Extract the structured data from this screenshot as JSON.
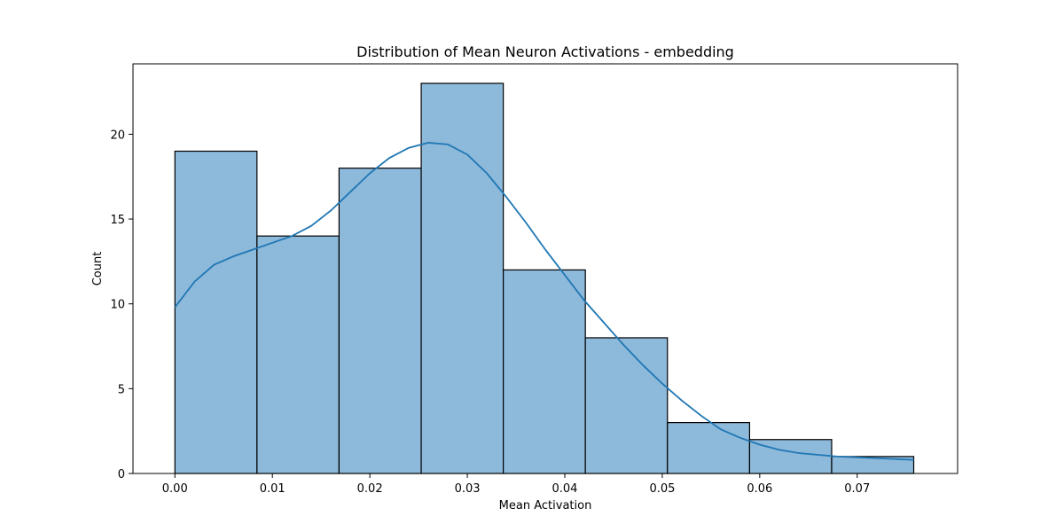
{
  "chart_data": {
    "type": "bar",
    "subtype": "histogram-with-kde",
    "title": "Distribution of Mean Neuron Activations - embedding",
    "xlabel": "Mean Activation",
    "ylabel": "Count",
    "xlim": [
      -0.0043,
      0.0803
    ],
    "ylim": [
      0,
      24.15
    ],
    "x_ticks": [
      0.0,
      0.01,
      0.02,
      0.03,
      0.04,
      0.05,
      0.06,
      0.07
    ],
    "x_tick_labels": [
      "0.00",
      "0.01",
      "0.02",
      "0.03",
      "0.04",
      "0.05",
      "0.06",
      "0.07"
    ],
    "y_ticks": [
      0,
      5,
      10,
      15,
      20
    ],
    "y_tick_labels": [
      "0",
      "5",
      "10",
      "15",
      "20"
    ],
    "bin_edges": [
      0.0,
      0.00842,
      0.01684,
      0.02527,
      0.03369,
      0.04211,
      0.05053,
      0.05896,
      0.06738,
      0.0758
    ],
    "counts": [
      19,
      14,
      18,
      23,
      12,
      8,
      3,
      2,
      1
    ],
    "kde": {
      "x": [
        0.0,
        0.002,
        0.004,
        0.006,
        0.008,
        0.01,
        0.012,
        0.014,
        0.016,
        0.018,
        0.02,
        0.022,
        0.024,
        0.026,
        0.028,
        0.03,
        0.032,
        0.034,
        0.036,
        0.038,
        0.04,
        0.042,
        0.044,
        0.046,
        0.048,
        0.05,
        0.052,
        0.054,
        0.056,
        0.058,
        0.06,
        0.062,
        0.064,
        0.066,
        0.068,
        0.07,
        0.072,
        0.074,
        0.0758
      ],
      "y": [
        9.8,
        11.3,
        12.3,
        12.8,
        13.2,
        13.6,
        14.0,
        14.6,
        15.5,
        16.6,
        17.7,
        18.6,
        19.2,
        19.5,
        19.4,
        18.8,
        17.7,
        16.3,
        14.8,
        13.2,
        11.7,
        10.2,
        8.9,
        7.6,
        6.4,
        5.3,
        4.3,
        3.4,
        2.6,
        2.1,
        1.7,
        1.4,
        1.2,
        1.1,
        1.0,
        0.95,
        0.9,
        0.85,
        0.8
      ]
    },
    "grid": false,
    "legend": "none",
    "colors": {
      "bar_fill": "#8db9da",
      "bar_edge": "#000000",
      "kde_line": "#1f77b4"
    }
  }
}
